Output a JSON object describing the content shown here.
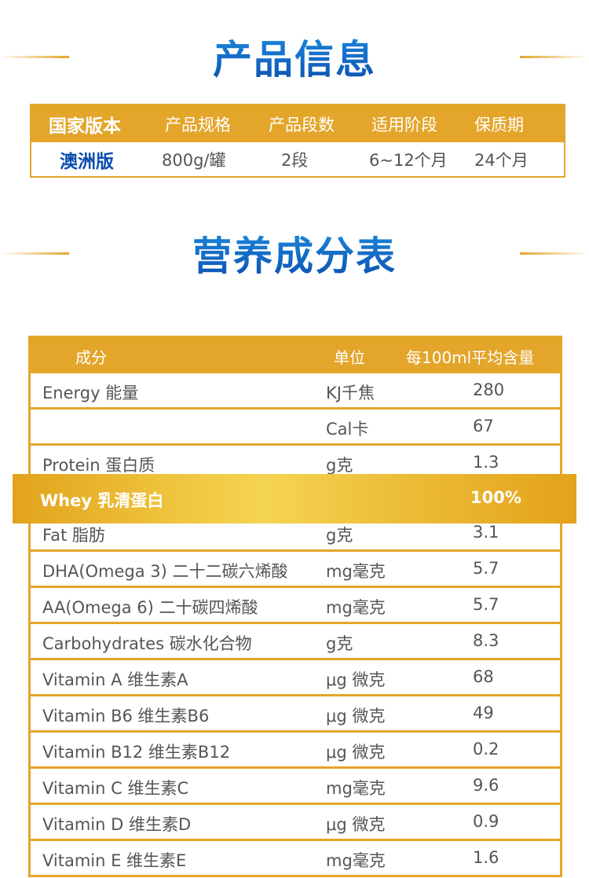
{
  "colors": {
    "accent": "#e3a52a",
    "title_blue": "#0d5cc0",
    "text": "#555555",
    "highlight_text": "#ffffff"
  },
  "product_info": {
    "title": "产品信息",
    "headers": [
      "国家版本",
      "产品规格",
      "产品段数",
      "适用阶段",
      "保质期"
    ],
    "values": [
      "澳洲版",
      "800g/罐",
      "2段",
      "6~12个月",
      "24个月"
    ]
  },
  "nutrition": {
    "title": "营养成分表",
    "headers": [
      "成分",
      "单位",
      "每100ml平均含量"
    ],
    "rows": [
      {
        "name": "Energy 能量",
        "unit": "KJ千焦",
        "value": "280"
      },
      {
        "name": "",
        "unit": "Cal卡",
        "value": "67"
      },
      {
        "name": "Protein 蛋白质",
        "unit": "g克",
        "value": "1.3"
      },
      {
        "name": "Whey 乳清蛋白",
        "unit": "",
        "value": "100%",
        "highlight": true
      },
      {
        "name": "Fat 脂肪",
        "unit": "g克",
        "value": "3.1"
      },
      {
        "name": "DHA(Omega 3) 二十二碳六烯酸",
        "unit": "mg毫克",
        "value": "5.7"
      },
      {
        "name": "AA(Omega 6) 二十碳四烯酸",
        "unit": "mg毫克",
        "value": "5.7"
      },
      {
        "name": "Carbohydrates 碳水化合物",
        "unit": "g克",
        "value": "8.3"
      },
      {
        "name": "Vitamin A 维生素A",
        "unit": "μg 微克",
        "value": "68"
      },
      {
        "name": "Vitamin B6 维生素B6",
        "unit": "μg 微克",
        "value": "49"
      },
      {
        "name": "Vitamin B12 维生素B12",
        "unit": "μg 微克",
        "value": "0.2"
      },
      {
        "name": "Vitamin C 维生素C",
        "unit": "mg毫克",
        "value": "9.6"
      },
      {
        "name": "Vitamin D 维生素D",
        "unit": "μg 微克",
        "value": "0.9"
      },
      {
        "name": "Vitamin E 维生素E",
        "unit": "mg毫克",
        "value": "1.6"
      }
    ]
  }
}
